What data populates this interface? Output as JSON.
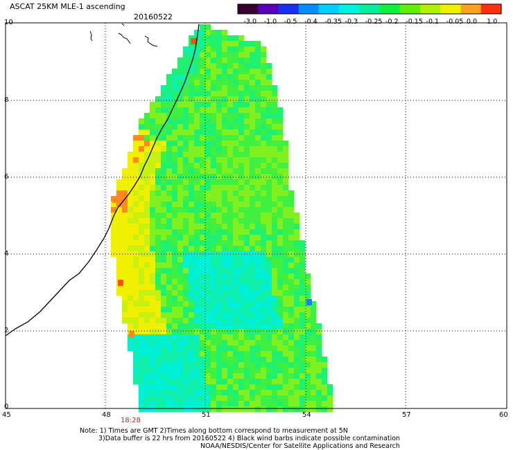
{
  "header": {
    "product": "ASCAT 25KM MLE-1 ascending",
    "date": "20160522"
  },
  "colorbar": {
    "labels": [
      "-3.0",
      "-1.0",
      "-0.5",
      "-0.4",
      "-0.35",
      "-0.3",
      "-0.25",
      "-0.2",
      "-0.15",
      "-0.1",
      "-0.05",
      "0.0",
      "1.0"
    ],
    "colors": [
      "#3a0030",
      "#5a00b8",
      "#1830f0",
      "#0090ff",
      "#00d0ff",
      "#00f2e0",
      "#00f0a0",
      "#10f040",
      "#60f000",
      "#b0f000",
      "#f0f000",
      "#ffa020",
      "#ff3010"
    ]
  },
  "map": {
    "lon_ticks": [
      "45",
      "48",
      "51",
      "54",
      "57",
      "60"
    ],
    "lat_ticks": [
      "10",
      "8",
      "6",
      "4",
      "2",
      "0"
    ],
    "lon_range": [
      45,
      60
    ],
    "lat_range": [
      0,
      10
    ],
    "grid": true,
    "pass_time": "18:28"
  },
  "notes": {
    "line1": "Note: 1) Times are GMT 2)Times along bottom correspond to measurement at 5N",
    "line2": "3)Data buffer is 22 hrs from 20160522 4) Black wind barbs indicate possible contamination",
    "line3": "NOAA/NESDIS/Center for Satellite Applications and Research"
  }
}
